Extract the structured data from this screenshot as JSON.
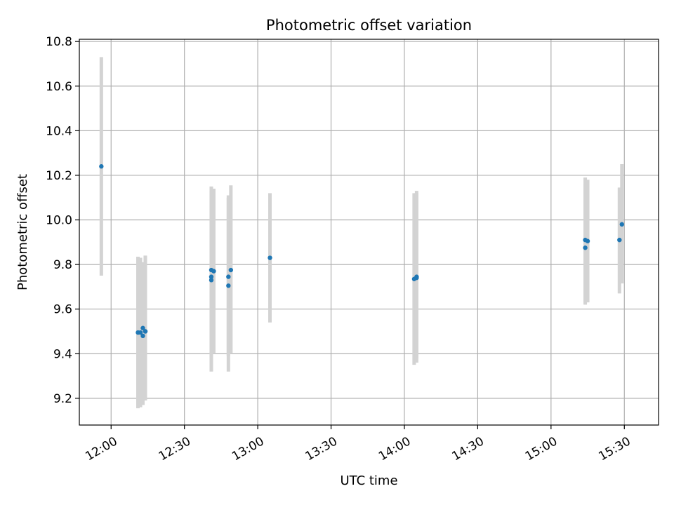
{
  "chart_data": {
    "type": "scatter",
    "title": "Photometric offset variation",
    "xlabel": "UTC time",
    "ylabel": "Photometric offset",
    "x_unit": "UTC HH:MM",
    "xlim": [
      "11:47",
      "15:44"
    ],
    "ylim": [
      9.08,
      10.81
    ],
    "x_ticks": [
      "12:00",
      "12:30",
      "13:00",
      "13:30",
      "14:00",
      "14:30",
      "15:00",
      "15:30"
    ],
    "y_ticks": [
      "9.2",
      "9.4",
      "9.6",
      "9.8",
      "10.0",
      "10.2",
      "10.4",
      "10.6",
      "10.8"
    ],
    "grid": true,
    "colors": {
      "points": "#1f77b4",
      "error_bars": "#d3d3d3",
      "grid": "#b0b0b0"
    },
    "points": [
      {
        "time": "11:56",
        "y": 10.24,
        "ylow": 9.75,
        "yhigh": 10.73
      },
      {
        "time": "12:11",
        "y": 9.495,
        "ylow": 9.155,
        "yhigh": 9.835
      },
      {
        "time": "12:12",
        "y": 9.495,
        "ylow": 9.16,
        "yhigh": 9.83
      },
      {
        "time": "12:13",
        "y": 9.515,
        "ylow": 9.18,
        "yhigh": 9.81
      },
      {
        "time": "12:13",
        "y": 9.48,
        "ylow": 9.17,
        "yhigh": 9.8
      },
      {
        "time": "12:14",
        "y": 9.5,
        "ylow": 9.19,
        "yhigh": 9.84
      },
      {
        "time": "12:14",
        "y": 9.5,
        "ylow": 9.2,
        "yhigh": 9.8
      },
      {
        "time": "12:41",
        "y": 9.775,
        "ylow": 9.32,
        "yhigh": 10.15
      },
      {
        "time": "12:41",
        "y": 9.745,
        "ylow": 9.4,
        "yhigh": 10.1
      },
      {
        "time": "12:41",
        "y": 9.73,
        "ylow": 9.38,
        "yhigh": 10.13
      },
      {
        "time": "12:42",
        "y": 9.77,
        "ylow": 9.4,
        "yhigh": 10.14
      },
      {
        "time": "12:48",
        "y": 9.745,
        "ylow": 9.39,
        "yhigh": 10.11
      },
      {
        "time": "12:48",
        "y": 9.705,
        "ylow": 9.32,
        "yhigh": 10.1
      },
      {
        "time": "12:49",
        "y": 9.775,
        "ylow": 9.4,
        "yhigh": 10.155
      },
      {
        "time": "13:05",
        "y": 9.83,
        "ylow": 9.54,
        "yhigh": 10.12
      },
      {
        "time": "14:04",
        "y": 9.735,
        "ylow": 9.35,
        "yhigh": 10.12
      },
      {
        "time": "14:05",
        "y": 9.74,
        "ylow": 9.38,
        "yhigh": 10.12
      },
      {
        "time": "14:05",
        "y": 9.745,
        "ylow": 9.36,
        "yhigh": 10.13
      },
      {
        "time": "15:14",
        "y": 9.875,
        "ylow": 9.62,
        "yhigh": 10.16
      },
      {
        "time": "15:14",
        "y": 9.91,
        "ylow": 9.63,
        "yhigh": 10.19
      },
      {
        "time": "15:15",
        "y": 9.905,
        "ylow": 9.63,
        "yhigh": 10.18
      },
      {
        "time": "15:28",
        "y": 9.91,
        "ylow": 9.67,
        "yhigh": 10.145
      },
      {
        "time": "15:29",
        "y": 9.98,
        "ylow": 9.715,
        "yhigh": 10.25
      }
    ]
  }
}
